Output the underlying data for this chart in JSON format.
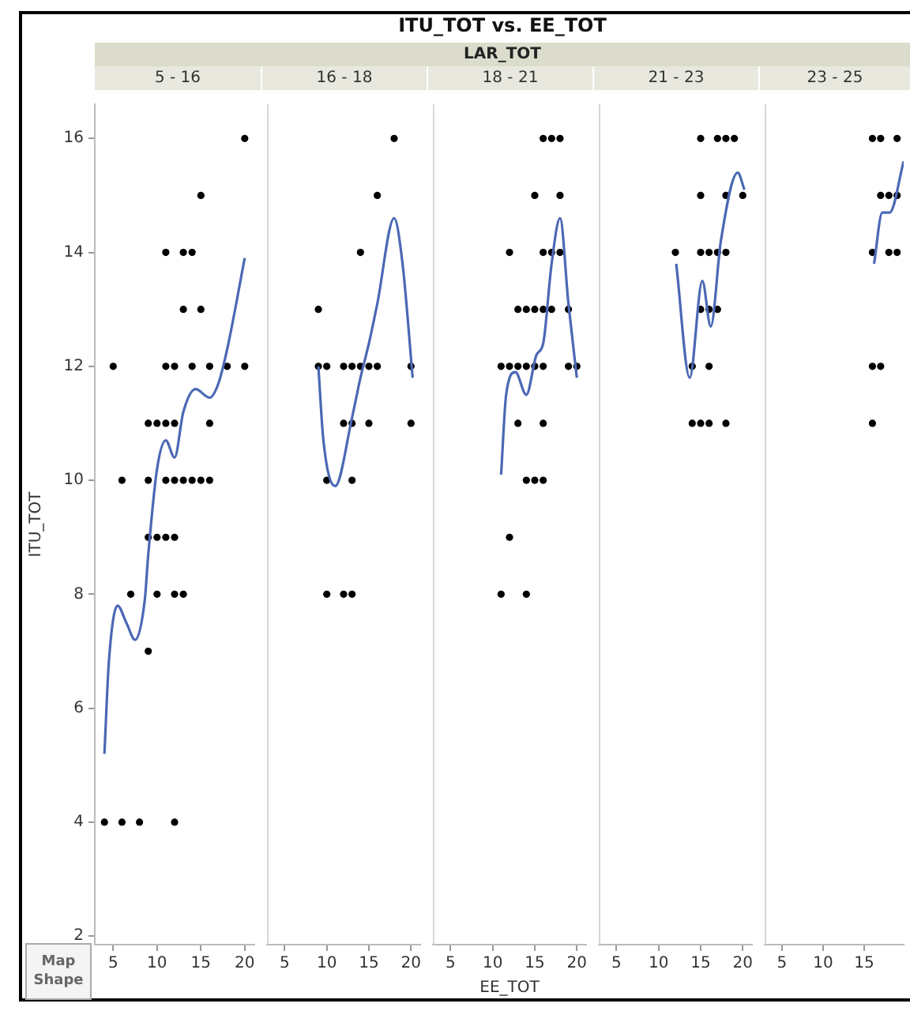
{
  "chart_data": [
    {
      "type": "scatter",
      "subtitle": "5 - 16",
      "ylabel": "ITU_TOT",
      "annotations": [
        "Map Shape"
      ],
      "xlim": [
        2.9,
        21.1
      ],
      "xticks": [
        5,
        10,
        15,
        20
      ],
      "ylim": [
        1.85,
        16.6
      ],
      "yticks": [
        2,
        4,
        6,
        8,
        10,
        12,
        14,
        16
      ],
      "series": [
        {
          "type": "scatter",
          "marker": "circle",
          "color": "#000000",
          "x": [
            20,
            15,
            11,
            13,
            14,
            13,
            15,
            5,
            11,
            12,
            14,
            16,
            18,
            20,
            9,
            10,
            11,
            12,
            16,
            6,
            9,
            11,
            12,
            13,
            14,
            15,
            16,
            9,
            10,
            11,
            12,
            7,
            10,
            12,
            13,
            9,
            4,
            6,
            8,
            12
          ],
          "values": [
            16,
            15,
            14,
            14,
            14,
            13,
            13,
            12,
            12,
            12,
            12,
            12,
            12,
            12,
            11,
            11,
            11,
            11,
            11,
            10,
            10,
            10,
            10,
            10,
            10,
            10,
            10,
            9,
            9,
            9,
            9,
            8,
            8,
            8,
            8,
            7,
            4,
            4,
            4,
            4
          ]
        },
        {
          "type": "line",
          "color": "#4a68b4",
          "x": [
            4,
            4.5,
            5.5,
            6.5,
            7.5,
            8.6,
            9,
            10,
            11,
            12,
            13,
            14.4,
            16,
            17,
            18,
            20
          ],
          "values": [
            5.2,
            6.8,
            7.8,
            7.5,
            7.2,
            7.9,
            8.7,
            10.2,
            10.7,
            10.4,
            11.2,
            11.6,
            11.45,
            11.7,
            12.3,
            13.9
          ]
        }
      ]
    },
    {
      "type": "scatter",
      "subtitle": "16 - 18",
      "tick_labels": "x",
      "xlim": [
        2.9,
        21.1
      ],
      "xticks": [
        5,
        10,
        15,
        20
      ],
      "ylim": [
        1.85,
        16.6
      ],
      "yticks": [
        2,
        4,
        6,
        8,
        10,
        12,
        14,
        16
      ],
      "series": [
        {
          "type": "scatter",
          "marker": "circle",
          "color": "#000000",
          "x": [
            18,
            16,
            14,
            9,
            9,
            10,
            12,
            13,
            14,
            15,
            16,
            20,
            12,
            13,
            15,
            20,
            10,
            13,
            10,
            12,
            13
          ],
          "values": [
            16,
            15,
            14,
            13,
            12,
            12,
            12,
            12,
            12,
            12,
            12,
            12,
            11,
            11,
            11,
            11,
            10,
            10,
            8,
            8,
            8
          ]
        },
        {
          "type": "line",
          "color": "#4a68b4",
          "x": [
            9,
            9.6,
            11,
            13,
            14,
            15,
            16,
            18,
            19,
            20.2
          ],
          "values": [
            12,
            10.7,
            9.9,
            11.1,
            11.8,
            12.4,
            13.1,
            14.6,
            13.8,
            11.8
          ]
        }
      ]
    },
    {
      "type": "scatter",
      "title": "ITU_TOT vs. EE_TOT",
      "subtitle": "18 - 21",
      "annotations": [
        "LAR_TOT"
      ],
      "xlabel": "EE_TOT",
      "tick_labels": "x",
      "xlim": [
        2.9,
        21.1
      ],
      "xticks": [
        5,
        10,
        15,
        20
      ],
      "ylim": [
        1.85,
        16.6
      ],
      "yticks": [
        2,
        4,
        6,
        8,
        10,
        12,
        14,
        16
      ],
      "series": [
        {
          "type": "scatter",
          "marker": "circle",
          "color": "#000000",
          "x": [
            16,
            17,
            18,
            15,
            18,
            12,
            16,
            17,
            18,
            13,
            14,
            15,
            16,
            17,
            19,
            11,
            12,
            13,
            14,
            15,
            16,
            19,
            20,
            13,
            16,
            14,
            15,
            16,
            12,
            11,
            14
          ],
          "values": [
            16,
            16,
            16,
            15,
            15,
            14,
            14,
            14,
            14,
            13,
            13,
            13,
            13,
            13,
            13,
            12,
            12,
            12,
            12,
            12,
            12,
            12,
            12,
            11,
            11,
            10,
            10,
            10,
            9,
            8,
            8
          ]
        },
        {
          "type": "line",
          "color": "#4a68b4",
          "x": [
            11,
            11.6,
            12.7,
            14,
            15.2,
            16,
            17,
            18,
            19,
            20
          ],
          "values": [
            10.1,
            11.5,
            11.9,
            11.5,
            12.2,
            12.4,
            13.8,
            14.6,
            13.1,
            11.8
          ]
        }
      ]
    },
    {
      "type": "scatter",
      "subtitle": "21 - 23",
      "tick_labels": "x",
      "xlim": [
        2.9,
        21.1
      ],
      "xticks": [
        5,
        10,
        15,
        20
      ],
      "ylim": [
        1.85,
        16.6
      ],
      "yticks": [
        2,
        4,
        6,
        8,
        10,
        12,
        14,
        16
      ],
      "series": [
        {
          "type": "scatter",
          "marker": "circle",
          "color": "#000000",
          "x": [
            15,
            17,
            18,
            19,
            15,
            18,
            20,
            12,
            15,
            16,
            17,
            18,
            15,
            16,
            17,
            14,
            16,
            14,
            15,
            16,
            18
          ],
          "values": [
            16,
            16,
            16,
            16,
            15,
            15,
            15,
            14,
            14,
            14,
            14,
            14,
            13,
            13,
            13,
            12,
            12,
            11,
            11,
            11,
            11
          ]
        },
        {
          "type": "line",
          "color": "#4a68b4",
          "x": [
            12.1,
            13.7,
            15.2,
            16.2,
            17.4,
            19.4,
            20.2
          ],
          "values": [
            13.8,
            11.8,
            13.5,
            12.7,
            14.2,
            15.4,
            15.1
          ]
        }
      ]
    },
    {
      "type": "scatter",
      "subtitle": "23 - 25",
      "tick_labels": "x",
      "xlim": [
        2.9,
        19.8
      ],
      "xticks": [
        5,
        10,
        15
      ],
      "ylim": [
        1.85,
        16.6
      ],
      "yticks": [
        2,
        4,
        6,
        8,
        10,
        12,
        14,
        16
      ],
      "series": [
        {
          "type": "scatter",
          "marker": "circle",
          "color": "#000000",
          "x": [
            16,
            17,
            19,
            17,
            18,
            19,
            16,
            18,
            19,
            16,
            17,
            16
          ],
          "values": [
            16,
            16,
            16,
            15,
            15,
            15,
            14,
            14,
            14,
            12,
            12,
            11
          ]
        },
        {
          "type": "line",
          "color": "#4a68b4",
          "x": [
            16.2,
            17.2,
            18.1,
            19.8
          ],
          "values": [
            13.8,
            14.7,
            14.7,
            15.6
          ]
        }
      ]
    }
  ]
}
